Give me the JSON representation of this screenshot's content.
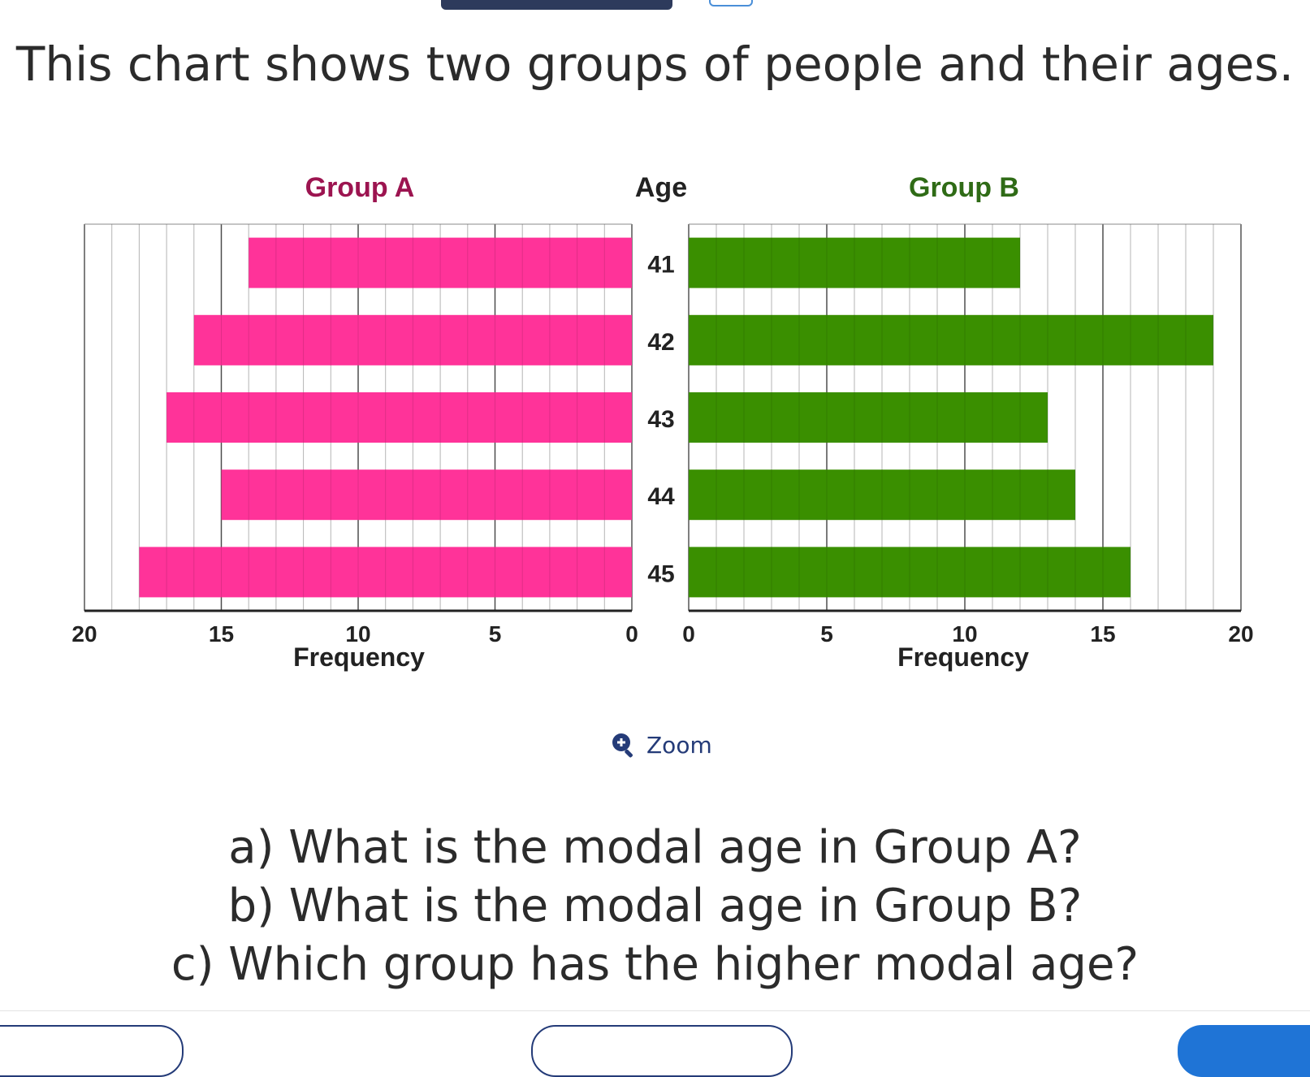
{
  "header": {
    "title": "This chart shows two groups of people and their ages."
  },
  "chart_data": {
    "type": "bar",
    "layout": "back-to-back horizontal",
    "center_label": "Age",
    "categories": [
      "41",
      "42",
      "43",
      "44",
      "45"
    ],
    "series": [
      {
        "name": "Group A",
        "values": [
          14,
          16,
          17,
          15,
          18
        ],
        "color": "#ff3399",
        "direction": "left"
      },
      {
        "name": "Group B",
        "values": [
          12,
          19,
          13,
          14,
          16
        ],
        "color": "#3a8f00",
        "direction": "right"
      }
    ],
    "xlabel": "Frequency",
    "xlim": [
      0,
      20
    ],
    "x_ticks": [
      "0",
      "5",
      "10",
      "15",
      "20"
    ],
    "grid": true,
    "title_colors": {
      "group_a": "#9c1450",
      "group_b": "#2f6b16",
      "age": "#222222"
    }
  },
  "zoom": {
    "label": "Zoom",
    "icon": "zoom-in-icon",
    "color": "#243b78"
  },
  "questions": [
    "a) What is the modal age in Group A?",
    "b) What is the modal age in Group B?",
    "c) Which group has the higher modal age?"
  ]
}
